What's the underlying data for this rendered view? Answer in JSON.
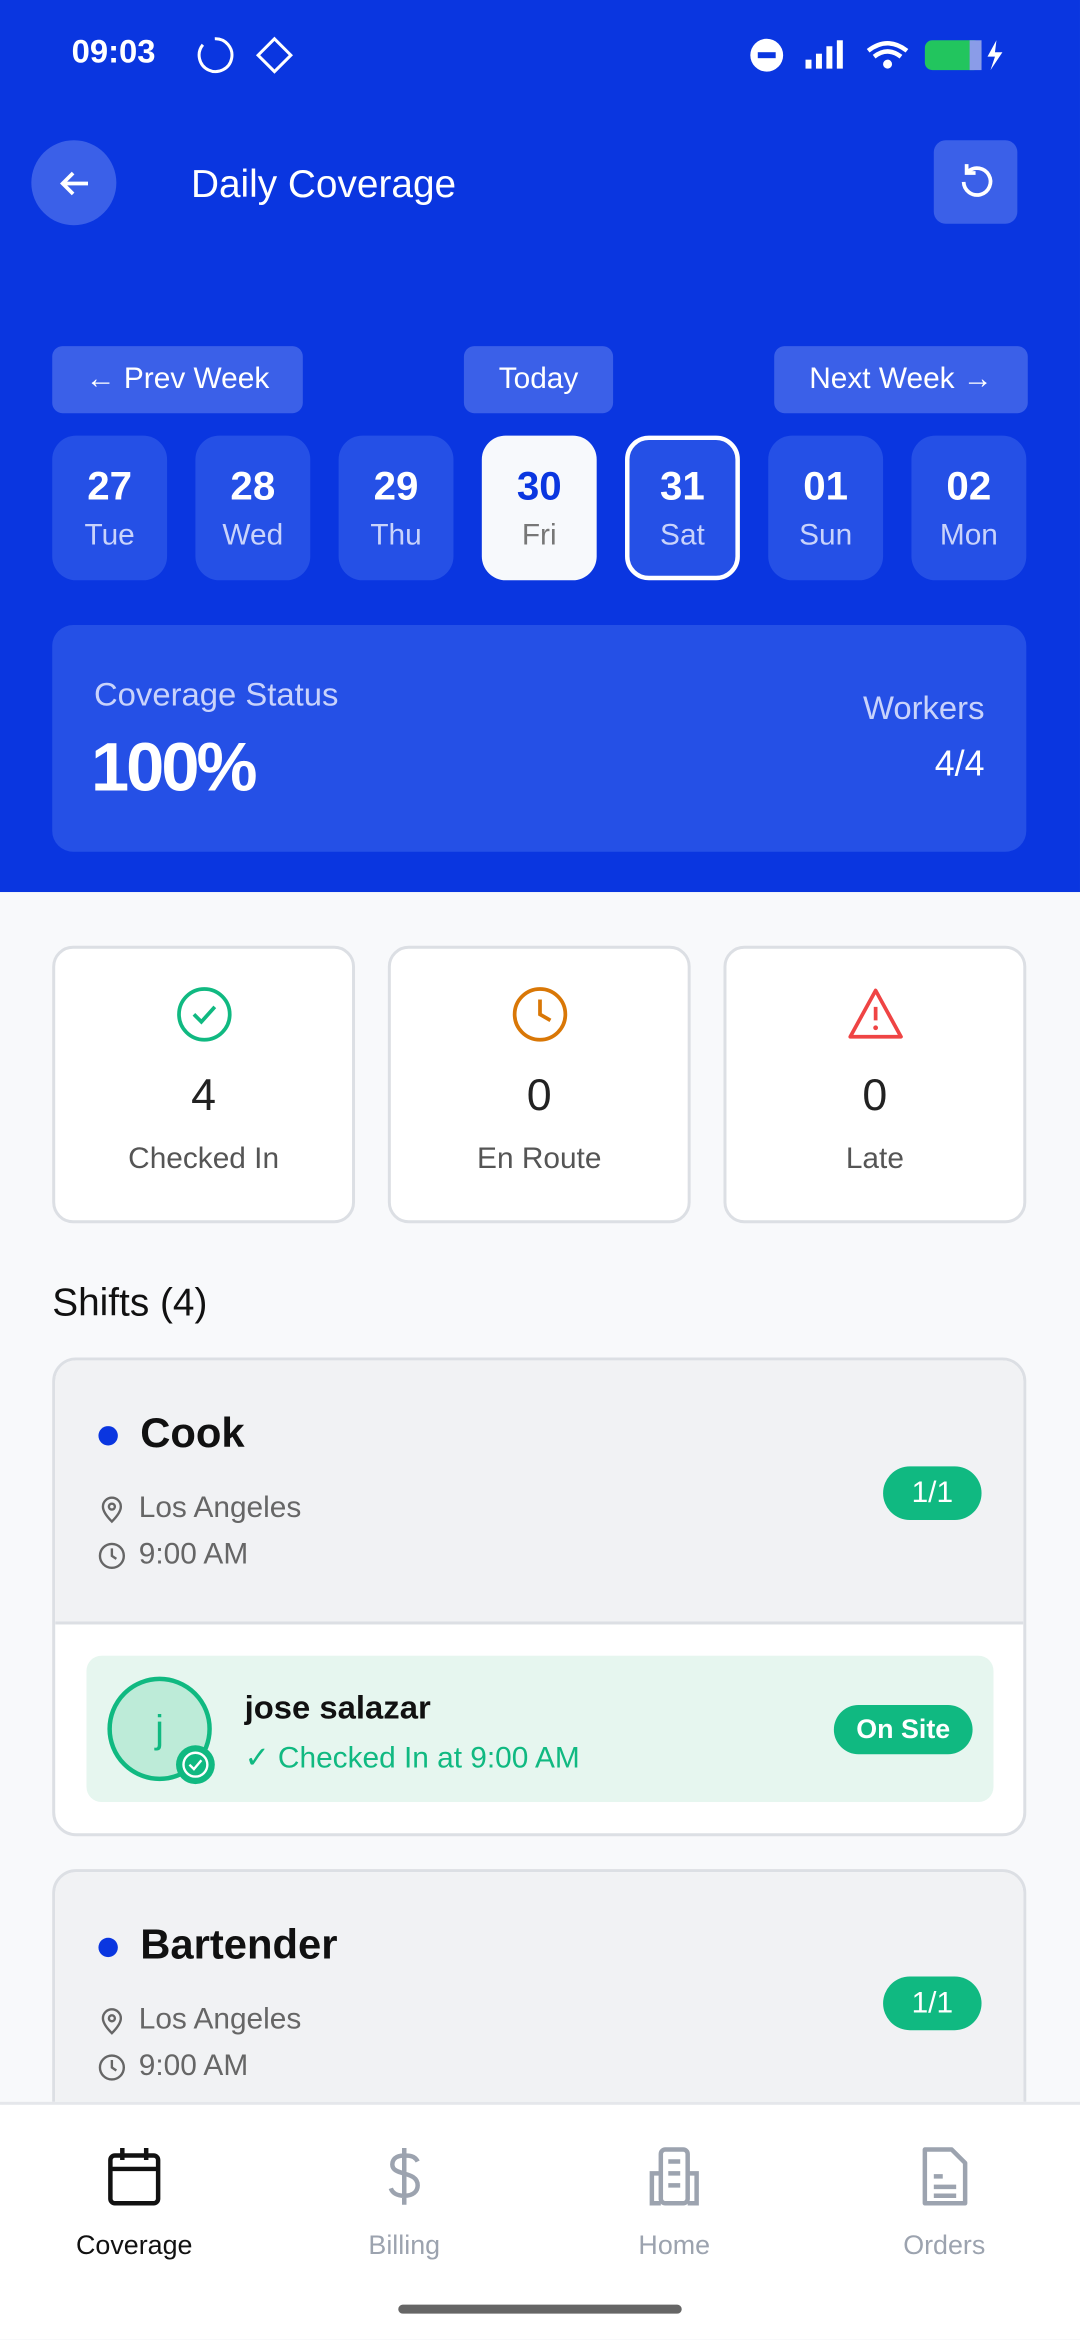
{
  "status_bar": {
    "time": "09:03"
  },
  "header": {
    "title": "Daily Coverage"
  },
  "week_nav": {
    "prev": "← Prev Week",
    "today": "Today",
    "next": "Next Week →"
  },
  "days": [
    {
      "num": "27",
      "day": "Tue"
    },
    {
      "num": "28",
      "day": "Wed"
    },
    {
      "num": "29",
      "day": "Thu"
    },
    {
      "num": "30",
      "day": "Fri",
      "selected": true
    },
    {
      "num": "31",
      "day": "Sat",
      "outlined": true
    },
    {
      "num": "01",
      "day": "Sun"
    },
    {
      "num": "02",
      "day": "Mon"
    }
  ],
  "coverage": {
    "label": "Coverage Status",
    "value": "100%",
    "workers_label": "Workers",
    "workers": "4/4"
  },
  "stats": [
    {
      "value": "4",
      "label": "Checked In",
      "color": "#10b981"
    },
    {
      "value": "0",
      "label": "En Route",
      "color": "#d97706"
    },
    {
      "value": "0",
      "label": "Late",
      "color": "#ef4444"
    }
  ],
  "shifts_title": "Shifts (4)",
  "shifts": [
    {
      "role": "Cook",
      "location": "Los Angeles",
      "time": "9:00 AM",
      "fill": "1/1",
      "worker": {
        "initial": "j",
        "name": "jose salazar",
        "status": "✓ Checked In at 9:00 AM",
        "badge": "On Site"
      }
    },
    {
      "role": "Bartender",
      "location": "Los Angeles",
      "time": "9:00 AM",
      "fill": "1/1"
    }
  ],
  "nav": [
    {
      "label": "Coverage",
      "active": true
    },
    {
      "label": "Billing"
    },
    {
      "label": "Home"
    },
    {
      "label": "Orders"
    }
  ]
}
